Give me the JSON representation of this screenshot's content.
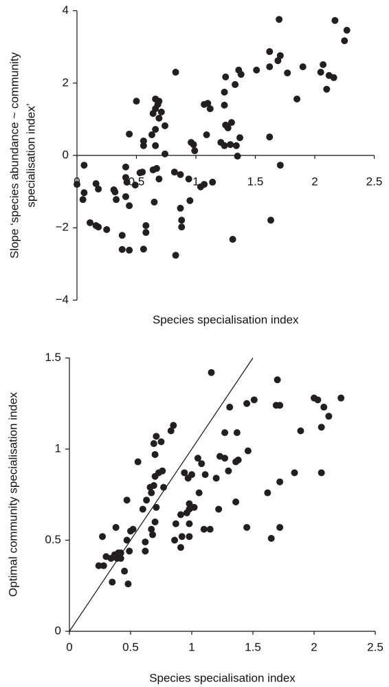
{
  "chart_data": [
    {
      "type": "scatter",
      "xlabel": "Species specialisation index",
      "ylabel": [
        "Slope ‘species abundance ~ community",
        "specialisation index’"
      ],
      "color": "#231f20",
      "xlim": [
        0,
        2.5
      ],
      "xticks": [
        0,
        0.5,
        1,
        1.5,
        2,
        2.5
      ],
      "ylim": [
        -4,
        4
      ],
      "yticks": [
        4,
        2,
        0,
        {
          "value": -2,
          "label": "−2"
        },
        {
          "value": -4,
          "label": "−4"
        }
      ],
      "x": [
        1.7,
        2.17,
        2.27,
        2.25,
        1.62,
        1.71,
        1.69,
        1.9,
        2.07,
        1.62,
        1.51,
        2.05,
        2.12,
        2.16,
        1.77,
        1.36,
        1.38,
        1.25,
        1.33,
        0.83,
        1.24,
        2.1,
        1.85,
        0.66,
        0.69,
        0.68,
        0.5,
        1.24,
        1.1,
        1.12,
        1.07,
        0.66,
        0.64,
        0.69,
        0.71,
        0.74,
        0.66,
        1.3,
        1.27,
        1.25,
        0.63,
        1.09,
        0.44,
        0.56,
        0.56,
        0.66,
        0.96,
        0.98,
        1.29,
        1.21,
        1.24,
        1.37,
        1.34,
        1.62,
        0.99,
        1.35,
        0.74,
        1.71,
        0.06,
        0.53,
        0.64,
        0.67,
        0.55,
        0.82,
        0.87,
        0.94,
        1.07,
        1.14,
        1.04,
        0.41,
        0.42,
        0.69,
        0.0,
        0.16,
        0.18,
        0.41,
        0.49,
        0.06,
        0.05,
        0.31,
        0.32,
        0.41,
        0.44,
        0.33,
        0.65,
        0.95,
        0.87,
        0.88,
        0.88,
        0.11,
        0.16,
        0.18,
        0.25,
        0.38,
        0.58,
        0.58,
        0.38,
        0.44,
        0.56,
        0.83,
        1.63,
        1.31
      ],
      "values": [
        3.76,
        3.73,
        3.46,
        3.17,
        2.87,
        2.76,
        2.62,
        2.45,
        2.51,
        2.45,
        2.36,
        2.3,
        2.21,
        2.15,
        2.28,
        2.36,
        2.24,
        2.17,
        1.96,
        2.3,
        1.75,
        1.83,
        1.56,
        1.56,
        1.5,
        1.41,
        1.5,
        1.39,
        1.44,
        1.29,
        1.41,
        1.29,
        1.16,
        1.03,
        1.2,
        0.82,
        0.72,
        0.91,
        0.76,
        0.84,
        0.57,
        0.57,
        0.59,
        0.4,
        0.27,
        0.27,
        0.36,
        0.3,
        0.3,
        0.36,
        0.27,
        0.49,
        0.27,
        0.51,
        0.13,
        -0.02,
        0.04,
        -0.27,
        -0.27,
        -0.48,
        -0.4,
        -0.36,
        -0.46,
        -0.46,
        -0.53,
        -0.65,
        -0.8,
        -0.74,
        -0.87,
        -0.61,
        -0.74,
        -0.65,
        -0.8,
        -0.78,
        -0.93,
        -0.32,
        -0.82,
        -1.03,
        -1.22,
        -0.95,
        -1.01,
        -1.14,
        -1.39,
        -1.22,
        -1.29,
        -1.25,
        -1.46,
        -1.79,
        -1.98,
        -1.86,
        -1.94,
        -1.98,
        -2.05,
        -2.21,
        -1.94,
        -2.13,
        -2.6,
        -2.62,
        -2.59,
        -2.76,
        -1.79,
        -2.32
      ]
    },
    {
      "type": "scatter",
      "xlabel": "Species specialisation index",
      "ylabel": [
        "Optimal community specialisation index"
      ],
      "color": "#231f20",
      "identity_line": true,
      "xlim": [
        0,
        2.5
      ],
      "xticks": [
        0,
        0.5,
        1,
        1.5,
        2,
        2.5
      ],
      "ylim": [
        0,
        1.5
      ],
      "yticks": [
        0,
        0.5,
        1,
        1.5
      ],
      "x": [
        1.16,
        1.7,
        1.51,
        1.45,
        1.69,
        1.72,
        2.0,
        2.03,
        2.08,
        2.12,
        2.22,
        1.31,
        0.85,
        0.83,
        1.89,
        2.06,
        0.71,
        0.75,
        0.69,
        1.27,
        1.37,
        1.46,
        1.38,
        1.36,
        1.23,
        1.27,
        1.05,
        1.08,
        1.11,
        2.06,
        1.84,
        1.72,
        0.56,
        0.7,
        0.73,
        0.76,
        0.7,
        0.69,
        0.66,
        0.63,
        0.67,
        0.77,
        1.0,
        1.06,
        1.2,
        1.3,
        1.22,
        1.36,
        1.62,
        0.94,
        0.97,
        0.98,
        0.98,
        1.02,
        0.96,
        0.91,
        0.87,
        0.98,
        0.7,
        0.71,
        0.6,
        0.47,
        0.5,
        0.52,
        0.67,
        0.86,
        0.92,
        0.98,
        1.1,
        1.15,
        0.91,
        0.68,
        0.62,
        0.62,
        1.45,
        1.72,
        1.65,
        0.38,
        0.27,
        0.47,
        0.49,
        0.37,
        0.4,
        0.42,
        0.34,
        0.39,
        0.42,
        0.3,
        0.28,
        0.24,
        0.45,
        0.35,
        0.48
      ],
      "values": [
        1.42,
        1.38,
        1.27,
        1.25,
        1.24,
        1.24,
        1.28,
        1.27,
        1.23,
        1.18,
        1.28,
        1.23,
        1.13,
        1.1,
        1.1,
        1.12,
        1.07,
        1.04,
        1.03,
        1.09,
        1.09,
        0.99,
        0.94,
        0.93,
        0.96,
        0.95,
        0.95,
        0.92,
        0.86,
        0.87,
        0.87,
        0.82,
        0.93,
        0.97,
        0.87,
        0.88,
        0.85,
        0.8,
        0.79,
        0.72,
        0.76,
        0.79,
        0.86,
        0.76,
        0.84,
        0.88,
        0.67,
        0.71,
        0.76,
        0.87,
        0.84,
        0.7,
        0.67,
        0.68,
        0.65,
        0.64,
        0.59,
        0.59,
        0.6,
        0.68,
        0.67,
        0.72,
        0.55,
        0.56,
        0.56,
        0.5,
        0.52,
        0.52,
        0.56,
        0.56,
        0.46,
        0.53,
        0.49,
        0.44,
        0.57,
        0.57,
        0.51,
        0.57,
        0.52,
        0.5,
        0.44,
        0.42,
        0.43,
        0.43,
        0.4,
        0.4,
        0.4,
        0.41,
        0.36,
        0.36,
        0.33,
        0.27,
        0.26
      ]
    }
  ]
}
